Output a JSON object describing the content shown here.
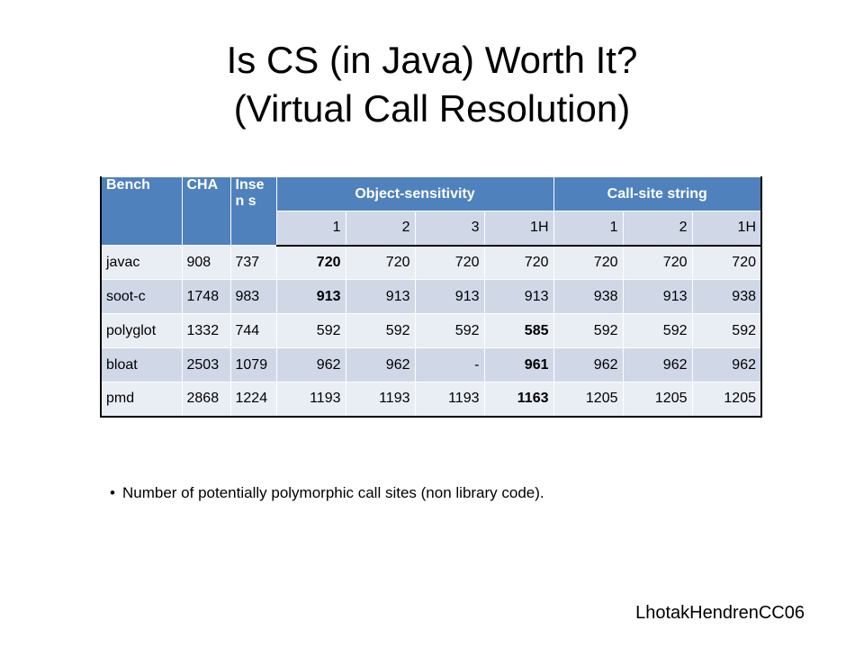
{
  "title": {
    "line1": "Is CS (in Java) Worth It?",
    "line2": "(Virtual Call Resolution)"
  },
  "table": {
    "headers": {
      "bench": "Bench",
      "cha": "CHA",
      "insens": "Insen s",
      "object_sensitivity": "Object-sensitivity",
      "call_site_string": "Call-site string"
    },
    "subheaders": [
      "1",
      "2",
      "3",
      "1H",
      "1",
      "2",
      "1H"
    ],
    "rows": [
      {
        "bench": "javac",
        "cha": "908",
        "insens": "737",
        "values": [
          "720",
          "720",
          "720",
          "720",
          "720",
          "720",
          "720"
        ],
        "bold": [
          0
        ]
      },
      {
        "bench": "soot-c",
        "cha": "1748",
        "insens": "983",
        "values": [
          "913",
          "913",
          "913",
          "913",
          "938",
          "913",
          "938"
        ],
        "bold": [
          0
        ]
      },
      {
        "bench": "polyglot",
        "cha": "1332",
        "insens": "744",
        "values": [
          "592",
          "592",
          "592",
          "585",
          "592",
          "592",
          "592"
        ],
        "bold": [
          3
        ]
      },
      {
        "bench": "bloat",
        "cha": "2503",
        "insens": "1079",
        "values": [
          "962",
          "962",
          "-",
          "961",
          "962",
          "962",
          "962"
        ],
        "bold": [
          3
        ]
      },
      {
        "bench": "pmd",
        "cha": "2868",
        "insens": "1224",
        "values": [
          "1193",
          "1193",
          "1193",
          "1163",
          "1205",
          "1205",
          "1205"
        ],
        "bold": [
          3
        ]
      }
    ]
  },
  "bullet": {
    "symbol": "•",
    "text": "Number of potentially polymorphic call sites (non library code)."
  },
  "credit": "LhotakHendrenCC06",
  "colors": {
    "header_blue": "#4f81bd",
    "row_light": "#e9edf4",
    "row_mid": "#d0d8e8"
  }
}
